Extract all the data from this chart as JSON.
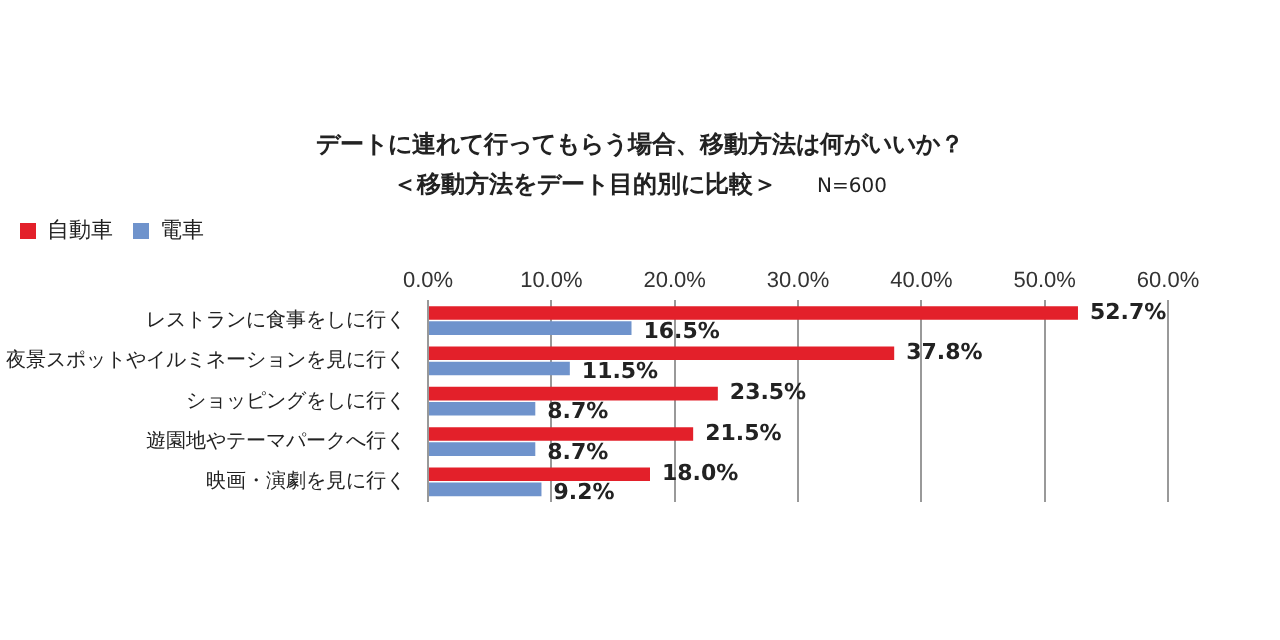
{
  "chart_data": {
    "type": "bar",
    "orientation": "horizontal",
    "title": "デートに連れて行ってもらう場合、移動方法は何がいいか？",
    "subtitle": "＜移動方法をデート目的別に比較＞",
    "annotations": [
      "N=600"
    ],
    "categories": [
      "レストランに食事をしに行く",
      "夜景スポットやイルミネーションを見に行く",
      "ショッピングをしに行く",
      "遊園地やテーマパークへ行く",
      "映画・演劇を見に行く"
    ],
    "series": [
      {
        "name": "自動車",
        "color": "#e3202a",
        "values": [
          52.7,
          37.8,
          23.5,
          21.5,
          18.0
        ],
        "value_labels": [
          "52.7%",
          "37.8%",
          "23.5%",
          "21.5%",
          "18.0%"
        ]
      },
      {
        "name": "電車",
        "color": "#6f93cc",
        "values": [
          16.5,
          11.5,
          8.7,
          8.7,
          9.2
        ],
        "value_labels": [
          "16.5%",
          "11.5%",
          "8.7%",
          "8.7%",
          "9.2%"
        ]
      }
    ],
    "xlim": [
      0,
      60
    ],
    "xticks": [
      {
        "value": 0,
        "label": "0.0%"
      },
      {
        "value": 10,
        "label": "10.0%"
      },
      {
        "value": 20,
        "label": "20.0%"
      },
      {
        "value": 30,
        "label": "30.0%"
      },
      {
        "value": 40,
        "label": "40.0%"
      },
      {
        "value": 50,
        "label": "50.0%"
      },
      {
        "value": 60,
        "label": "60.0%"
      }
    ],
    "grid": "x",
    "legend": "top left"
  }
}
